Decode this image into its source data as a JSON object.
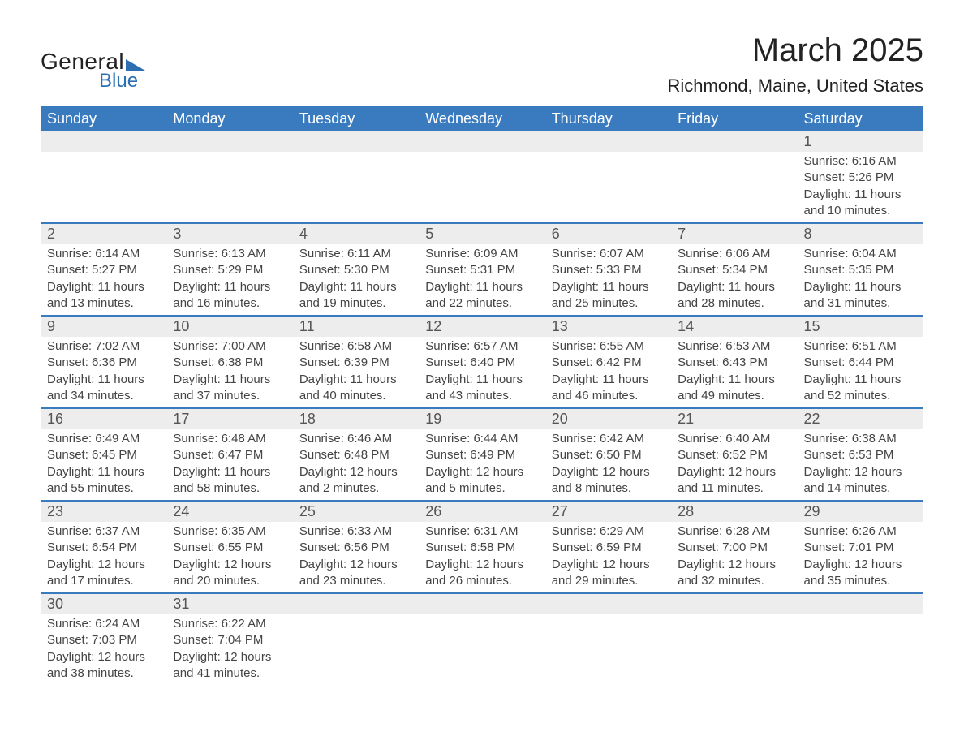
{
  "logo": {
    "text1": "General",
    "text2": "Blue"
  },
  "title": "March 2025",
  "location": "Richmond, Maine, United States",
  "style": {
    "header_bg": "#3a7bbf",
    "header_fg": "#ffffff",
    "row_border": "#3a7bbf",
    "daynum_bg": "#ededed",
    "page_bg": "#ffffff",
    "text_color": "#444",
    "title_fontsize": 40,
    "location_fontsize": 22,
    "header_fontsize": 18,
    "body_fontsize": 15
  },
  "weekdays": [
    "Sunday",
    "Monday",
    "Tuesday",
    "Wednesday",
    "Thursday",
    "Friday",
    "Saturday"
  ],
  "weeks": [
    [
      null,
      null,
      null,
      null,
      null,
      null,
      {
        "n": "1",
        "sunrise": "6:16 AM",
        "sunset": "5:26 PM",
        "daylight": "11 hours and 10 minutes."
      }
    ],
    [
      {
        "n": "2",
        "sunrise": "6:14 AM",
        "sunset": "5:27 PM",
        "daylight": "11 hours and 13 minutes."
      },
      {
        "n": "3",
        "sunrise": "6:13 AM",
        "sunset": "5:29 PM",
        "daylight": "11 hours and 16 minutes."
      },
      {
        "n": "4",
        "sunrise": "6:11 AM",
        "sunset": "5:30 PM",
        "daylight": "11 hours and 19 minutes."
      },
      {
        "n": "5",
        "sunrise": "6:09 AM",
        "sunset": "5:31 PM",
        "daylight": "11 hours and 22 minutes."
      },
      {
        "n": "6",
        "sunrise": "6:07 AM",
        "sunset": "5:33 PM",
        "daylight": "11 hours and 25 minutes."
      },
      {
        "n": "7",
        "sunrise": "6:06 AM",
        "sunset": "5:34 PM",
        "daylight": "11 hours and 28 minutes."
      },
      {
        "n": "8",
        "sunrise": "6:04 AM",
        "sunset": "5:35 PM",
        "daylight": "11 hours and 31 minutes."
      }
    ],
    [
      {
        "n": "9",
        "sunrise": "7:02 AM",
        "sunset": "6:36 PM",
        "daylight": "11 hours and 34 minutes."
      },
      {
        "n": "10",
        "sunrise": "7:00 AM",
        "sunset": "6:38 PM",
        "daylight": "11 hours and 37 minutes."
      },
      {
        "n": "11",
        "sunrise": "6:58 AM",
        "sunset": "6:39 PM",
        "daylight": "11 hours and 40 minutes."
      },
      {
        "n": "12",
        "sunrise": "6:57 AM",
        "sunset": "6:40 PM",
        "daylight": "11 hours and 43 minutes."
      },
      {
        "n": "13",
        "sunrise": "6:55 AM",
        "sunset": "6:42 PM",
        "daylight": "11 hours and 46 minutes."
      },
      {
        "n": "14",
        "sunrise": "6:53 AM",
        "sunset": "6:43 PM",
        "daylight": "11 hours and 49 minutes."
      },
      {
        "n": "15",
        "sunrise": "6:51 AM",
        "sunset": "6:44 PM",
        "daylight": "11 hours and 52 minutes."
      }
    ],
    [
      {
        "n": "16",
        "sunrise": "6:49 AM",
        "sunset": "6:45 PM",
        "daylight": "11 hours and 55 minutes."
      },
      {
        "n": "17",
        "sunrise": "6:48 AM",
        "sunset": "6:47 PM",
        "daylight": "11 hours and 58 minutes."
      },
      {
        "n": "18",
        "sunrise": "6:46 AM",
        "sunset": "6:48 PM",
        "daylight": "12 hours and 2 minutes."
      },
      {
        "n": "19",
        "sunrise": "6:44 AM",
        "sunset": "6:49 PM",
        "daylight": "12 hours and 5 minutes."
      },
      {
        "n": "20",
        "sunrise": "6:42 AM",
        "sunset": "6:50 PM",
        "daylight": "12 hours and 8 minutes."
      },
      {
        "n": "21",
        "sunrise": "6:40 AM",
        "sunset": "6:52 PM",
        "daylight": "12 hours and 11 minutes."
      },
      {
        "n": "22",
        "sunrise": "6:38 AM",
        "sunset": "6:53 PM",
        "daylight": "12 hours and 14 minutes."
      }
    ],
    [
      {
        "n": "23",
        "sunrise": "6:37 AM",
        "sunset": "6:54 PM",
        "daylight": "12 hours and 17 minutes."
      },
      {
        "n": "24",
        "sunrise": "6:35 AM",
        "sunset": "6:55 PM",
        "daylight": "12 hours and 20 minutes."
      },
      {
        "n": "25",
        "sunrise": "6:33 AM",
        "sunset": "6:56 PM",
        "daylight": "12 hours and 23 minutes."
      },
      {
        "n": "26",
        "sunrise": "6:31 AM",
        "sunset": "6:58 PM",
        "daylight": "12 hours and 26 minutes."
      },
      {
        "n": "27",
        "sunrise": "6:29 AM",
        "sunset": "6:59 PM",
        "daylight": "12 hours and 29 minutes."
      },
      {
        "n": "28",
        "sunrise": "6:28 AM",
        "sunset": "7:00 PM",
        "daylight": "12 hours and 32 minutes."
      },
      {
        "n": "29",
        "sunrise": "6:26 AM",
        "sunset": "7:01 PM",
        "daylight": "12 hours and 35 minutes."
      }
    ],
    [
      {
        "n": "30",
        "sunrise": "6:24 AM",
        "sunset": "7:03 PM",
        "daylight": "12 hours and 38 minutes."
      },
      {
        "n": "31",
        "sunrise": "6:22 AM",
        "sunset": "7:04 PM",
        "daylight": "12 hours and 41 minutes."
      },
      null,
      null,
      null,
      null,
      null
    ]
  ],
  "labels": {
    "sunrise": "Sunrise: ",
    "sunset": "Sunset: ",
    "daylight": "Daylight: "
  }
}
